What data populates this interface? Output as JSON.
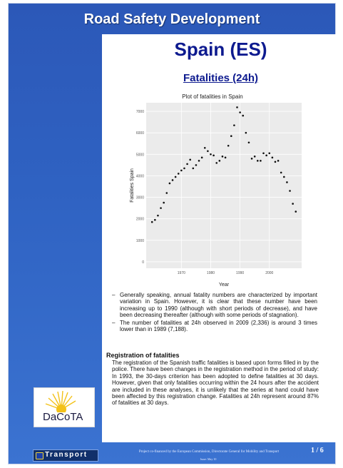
{
  "header": {
    "title": "Road Safety Development"
  },
  "country": {
    "title": "Spain (ES)"
  },
  "section": {
    "title": "Fatalities (24h)"
  },
  "chart_data": {
    "type": "scatter",
    "title": "Plot of fatalities in Spain",
    "xlabel": "Year",
    "ylabel": "Fatalities Spain",
    "xlim": [
      1958,
      2011
    ],
    "ylim": [
      -300,
      7400
    ],
    "x_ticks": [
      1970,
      1980,
      1990,
      2000
    ],
    "y_ticks": [
      0,
      1000,
      2000,
      3000,
      4000,
      5000,
      6000,
      7000
    ],
    "grid": true,
    "x": [
      1960,
      1961,
      1962,
      1963,
      1964,
      1965,
      1966,
      1967,
      1968,
      1969,
      1970,
      1971,
      1972,
      1973,
      1974,
      1975,
      1976,
      1977,
      1978,
      1979,
      1980,
      1981,
      1982,
      1983,
      1984,
      1985,
      1986,
      1987,
      1988,
      1989,
      1990,
      1991,
      1992,
      1993,
      1994,
      1995,
      1996,
      1997,
      1998,
      1999,
      2000,
      2001,
      2002,
      2003,
      2004,
      2005,
      2006,
      2007,
      2008,
      2009
    ],
    "y": [
      1850,
      1950,
      2150,
      2500,
      2750,
      3200,
      3650,
      3800,
      3950,
      4100,
      4250,
      4350,
      4550,
      4750,
      4350,
      4500,
      4700,
      4850,
      5300,
      5150,
      5000,
      4950,
      4600,
      4700,
      4900,
      4850,
      5400,
      5850,
      6350,
      7188,
      6950,
      6800,
      6000,
      5550,
      4800,
      4900,
      4700,
      4700,
      5050,
      4950,
      5050,
      4850,
      4650,
      4700,
      4150,
      3950,
      3700,
      3300,
      2700,
      2336
    ]
  },
  "bullets": [
    "Generally speaking, annual fatality numbers are characterized by important variation in Spain. However, it is clear that these number have been increasing up to 1990 (although with short periods of decrease), and have been decreasing thereafter (although with some periods of stagnation).",
    "The number of fatalities at 24h observed in 2009 (2,336) is around 3 times lower than in 1989 (7,188)."
  ],
  "bullet_marker": "–",
  "registration": {
    "heading": "Registration of fatalities",
    "text": "The registration of the Spanish traffic fatalities is based upon forms filled in by the police. There have been changes in the registration method in the period of study: In 1993, the 30-days criterion has been adopted to define fatalities at 30 days. However, given that only fatalities occurring within the 24 hours after the accident are included in these analyses, it is unlikely that the series at hand could have been affected by this registration change. Fatalities at 24h represent around 87% of fatalities at 30 days."
  },
  "footer": {
    "note": "Project co-financed by the European Commission, Directorate General for Mobility and Transport",
    "date": "Issue: May 10",
    "page": "1 / 6",
    "transport_label": "Transport",
    "logo_text": "DaCoTA"
  },
  "colors": {
    "page_background": "#2f62c2",
    "title_blue": "#0d1a8f",
    "logo_sun": "#f3c21a"
  }
}
